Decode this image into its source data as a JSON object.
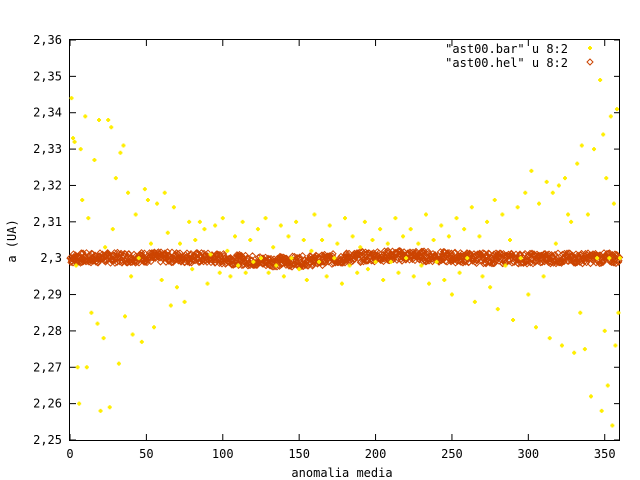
{
  "chart_data": {
    "type": "scatter",
    "xlabel": "anomalia media",
    "ylabel": "a (UA)",
    "xlim": [
      0,
      360
    ],
    "ylim": [
      2.25,
      2.36
    ],
    "xticks": [
      0,
      50,
      100,
      150,
      200,
      250,
      300,
      350
    ],
    "yticks": [
      "2,25",
      "2,26",
      "2,27",
      "2,28",
      "2,29",
      "2,3",
      "2,31",
      "2,32",
      "2,33",
      "2,34",
      "2,35",
      "2,36"
    ],
    "grid": false,
    "legend_position": "top-right",
    "series": [
      {
        "name": "\"ast00.bar\" u 8:2",
        "color": "#ffee00",
        "marker": "plus",
        "points": [
          [
            1,
            2.344
          ],
          [
            2,
            2.333
          ],
          [
            3,
            2.332
          ],
          [
            4,
            2.298
          ],
          [
            5,
            2.27
          ],
          [
            6,
            2.26
          ],
          [
            7,
            2.33
          ],
          [
            8,
            2.316
          ],
          [
            10,
            2.339
          ],
          [
            11,
            2.27
          ],
          [
            12,
            2.311
          ],
          [
            14,
            2.285
          ],
          [
            16,
            2.327
          ],
          [
            18,
            2.282
          ],
          [
            19,
            2.338
          ],
          [
            20,
            2.258
          ],
          [
            22,
            2.278
          ],
          [
            23,
            2.303
          ],
          [
            25,
            2.338
          ],
          [
            26,
            2.259
          ],
          [
            27,
            2.336
          ],
          [
            28,
            2.308
          ],
          [
            30,
            2.322
          ],
          [
            32,
            2.271
          ],
          [
            33,
            2.329
          ],
          [
            35,
            2.331
          ],
          [
            36,
            2.284
          ],
          [
            38,
            2.318
          ],
          [
            40,
            2.295
          ],
          [
            41,
            2.279
          ],
          [
            43,
            2.312
          ],
          [
            45,
            2.3
          ],
          [
            47,
            2.277
          ],
          [
            49,
            2.319
          ],
          [
            51,
            2.316
          ],
          [
            53,
            2.304
          ],
          [
            55,
            2.281
          ],
          [
            57,
            2.315
          ],
          [
            60,
            2.294
          ],
          [
            62,
            2.318
          ],
          [
            64,
            2.307
          ],
          [
            66,
            2.287
          ],
          [
            68,
            2.314
          ],
          [
            70,
            2.292
          ],
          [
            72,
            2.304
          ],
          [
            75,
            2.288
          ],
          [
            78,
            2.31
          ],
          [
            80,
            2.297
          ],
          [
            82,
            2.305
          ],
          [
            85,
            2.31
          ],
          [
            88,
            2.308
          ],
          [
            90,
            2.293
          ],
          [
            92,
            2.301
          ],
          [
            95,
            2.309
          ],
          [
            98,
            2.296
          ],
          [
            100,
            2.311
          ],
          [
            103,
            2.302
          ],
          [
            105,
            2.295
          ],
          [
            108,
            2.306
          ],
          [
            110,
            2.298
          ],
          [
            113,
            2.31
          ],
          [
            115,
            2.296
          ],
          [
            118,
            2.305
          ],
          [
            120,
            2.299
          ],
          [
            123,
            2.308
          ],
          [
            125,
            2.3
          ],
          [
            128,
            2.311
          ],
          [
            130,
            2.296
          ],
          [
            133,
            2.303
          ],
          [
            135,
            2.298
          ],
          [
            138,
            2.309
          ],
          [
            140,
            2.295
          ],
          [
            143,
            2.306
          ],
          [
            145,
            2.3
          ],
          [
            148,
            2.31
          ],
          [
            150,
            2.297
          ],
          [
            153,
            2.305
          ],
          [
            155,
            2.294
          ],
          [
            158,
            2.302
          ],
          [
            160,
            2.312
          ],
          [
            163,
            2.299
          ],
          [
            165,
            2.305
          ],
          [
            168,
            2.295
          ],
          [
            170,
            2.309
          ],
          [
            173,
            2.3
          ],
          [
            175,
            2.304
          ],
          [
            178,
            2.293
          ],
          [
            180,
            2.311
          ],
          [
            183,
            2.298
          ],
          [
            185,
            2.306
          ],
          [
            188,
            2.296
          ],
          [
            190,
            2.303
          ],
          [
            193,
            2.31
          ],
          [
            195,
            2.297
          ],
          [
            198,
            2.305
          ],
          [
            200,
            2.299
          ],
          [
            203,
            2.308
          ],
          [
            205,
            2.294
          ],
          [
            208,
            2.304
          ],
          [
            210,
            2.299
          ],
          [
            213,
            2.311
          ],
          [
            215,
            2.296
          ],
          [
            218,
            2.306
          ],
          [
            220,
            2.3
          ],
          [
            223,
            2.308
          ],
          [
            225,
            2.295
          ],
          [
            228,
            2.304
          ],
          [
            230,
            2.298
          ],
          [
            233,
            2.312
          ],
          [
            235,
            2.293
          ],
          [
            238,
            2.305
          ],
          [
            240,
            2.299
          ],
          [
            243,
            2.309
          ],
          [
            245,
            2.294
          ],
          [
            248,
            2.306
          ],
          [
            250,
            2.29
          ],
          [
            253,
            2.311
          ],
          [
            255,
            2.296
          ],
          [
            258,
            2.308
          ],
          [
            260,
            2.3
          ],
          [
            263,
            2.314
          ],
          [
            265,
            2.288
          ],
          [
            268,
            2.306
          ],
          [
            270,
            2.295
          ],
          [
            273,
            2.31
          ],
          [
            275,
            2.292
          ],
          [
            278,
            2.316
          ],
          [
            280,
            2.286
          ],
          [
            283,
            2.312
          ],
          [
            285,
            2.298
          ],
          [
            288,
            2.305
          ],
          [
            290,
            2.283
          ],
          [
            293,
            2.314
          ],
          [
            295,
            2.3
          ],
          [
            298,
            2.318
          ],
          [
            300,
            2.29
          ],
          [
            302,
            2.324
          ],
          [
            305,
            2.281
          ],
          [
            307,
            2.315
          ],
          [
            310,
            2.295
          ],
          [
            312,
            2.321
          ],
          [
            314,
            2.278
          ],
          [
            316,
            2.318
          ],
          [
            318,
            2.304
          ],
          [
            320,
            2.32
          ],
          [
            322,
            2.276
          ],
          [
            324,
            2.322
          ],
          [
            326,
            2.312
          ],
          [
            328,
            2.31
          ],
          [
            330,
            2.274
          ],
          [
            332,
            2.326
          ],
          [
            334,
            2.285
          ],
          [
            335,
            2.331
          ],
          [
            337,
            2.275
          ],
          [
            339,
            2.312
          ],
          [
            341,
            2.262
          ],
          [
            343,
            2.33
          ],
          [
            345,
            2.3
          ],
          [
            347,
            2.349
          ],
          [
            348,
            2.258
          ],
          [
            349,
            2.334
          ],
          [
            350,
            2.28
          ],
          [
            351,
            2.322
          ],
          [
            352,
            2.265
          ],
          [
            353,
            2.3
          ],
          [
            354,
            2.339
          ],
          [
            355,
            2.254
          ],
          [
            356,
            2.315
          ],
          [
            357,
            2.276
          ],
          [
            358,
            2.341
          ],
          [
            359,
            2.285
          ],
          [
            360,
            2.3
          ]
        ]
      },
      {
        "name": "\"ast00.hel\" u 8:2",
        "color": "#cc4400",
        "marker": "diamond",
        "band_center": 2.3,
        "band_halfwidth": 0.0015,
        "wave_amplitude": 0.001
      }
    ]
  }
}
